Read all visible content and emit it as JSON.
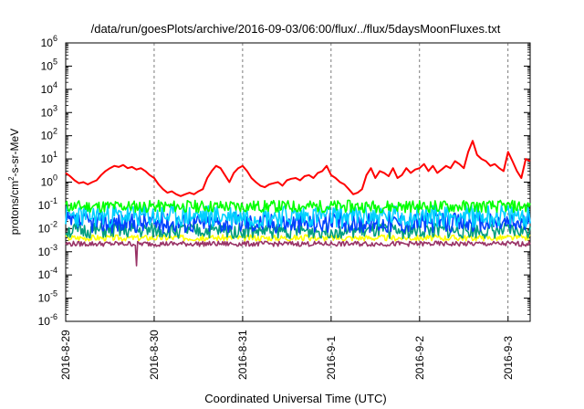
{
  "chart_data": {
    "type": "line",
    "title": "/data/run/goesPlots/archive/2016-09-03/06:00/flux/../flux/5daysMoonFluxes.txt",
    "xlabel": "Coordinated Universal Time (UTC)",
    "ylabel_base": "protons/cm",
    "ylabel_sup": "2",
    "ylabel_rest": "-s-sr-MeV",
    "y_scale": "log",
    "ylim_exp": [
      -6,
      6
    ],
    "y_ticks": [
      {
        "base": "10",
        "exp": "6",
        "value_exp": 6
      },
      {
        "base": "10",
        "exp": "5",
        "value_exp": 5
      },
      {
        "base": "10",
        "exp": "4",
        "value_exp": 4
      },
      {
        "base": "10",
        "exp": "3",
        "value_exp": 3
      },
      {
        "base": "10",
        "exp": "2",
        "value_exp": 2
      },
      {
        "base": "10",
        "exp": "1",
        "value_exp": 1
      },
      {
        "base": "10",
        "exp": "0",
        "value_exp": 0
      },
      {
        "base": "10",
        "exp": "-1",
        "value_exp": -1
      },
      {
        "base": "10",
        "exp": "-2",
        "value_exp": -2
      },
      {
        "base": "10",
        "exp": "-3",
        "value_exp": -3
      },
      {
        "base": "10",
        "exp": "-4",
        "value_exp": -4
      },
      {
        "base": "10",
        "exp": "-5",
        "value_exp": -5
      },
      {
        "base": "10",
        "exp": "-6",
        "value_exp": -6
      }
    ],
    "x_range_days": [
      0,
      5.25
    ],
    "x_ticks": [
      {
        "label": "2016-8-29",
        "day": 0
      },
      {
        "label": "2016-8-30",
        "day": 1
      },
      {
        "label": "2016-8-31",
        "day": 2
      },
      {
        "label": "2016-9-1",
        "day": 3
      },
      {
        "label": "2016-9-2",
        "day": 4
      },
      {
        "label": "2016-9-3",
        "day": 5
      }
    ],
    "grid": "vertical",
    "series": [
      {
        "color": "#ff0000",
        "points": [
          [
            0,
            2.5
          ],
          [
            0.05,
            1.8
          ],
          [
            0.1,
            1.2
          ],
          [
            0.15,
            0.9
          ],
          [
            0.2,
            1.0
          ],
          [
            0.25,
            0.8
          ],
          [
            0.3,
            1.0
          ],
          [
            0.35,
            1.2
          ],
          [
            0.4,
            2.0
          ],
          [
            0.45,
            3.0
          ],
          [
            0.5,
            4.0
          ],
          [
            0.55,
            5.0
          ],
          [
            0.6,
            4.5
          ],
          [
            0.65,
            5.5
          ],
          [
            0.7,
            4.0
          ],
          [
            0.75,
            4.5
          ],
          [
            0.8,
            3.5
          ],
          [
            0.85,
            4.0
          ],
          [
            0.9,
            3.0
          ],
          [
            0.95,
            2.0
          ],
          [
            1.0,
            1.5
          ],
          [
            1.05,
            0.8
          ],
          [
            1.1,
            0.5
          ],
          [
            1.15,
            0.35
          ],
          [
            1.2,
            0.4
          ],
          [
            1.25,
            0.3
          ],
          [
            1.3,
            0.25
          ],
          [
            1.35,
            0.3
          ],
          [
            1.4,
            0.35
          ],
          [
            1.45,
            0.3
          ],
          [
            1.5,
            0.4
          ],
          [
            1.55,
            0.5
          ],
          [
            1.6,
            1.5
          ],
          [
            1.65,
            3.0
          ],
          [
            1.7,
            5.0
          ],
          [
            1.75,
            4.0
          ],
          [
            1.8,
            2.0
          ],
          [
            1.85,
            1.0
          ],
          [
            1.9,
            2.5
          ],
          [
            1.95,
            4.0
          ],
          [
            2.0,
            5.0
          ],
          [
            2.05,
            3.0
          ],
          [
            2.1,
            1.5
          ],
          [
            2.15,
            1.0
          ],
          [
            2.2,
            0.7
          ],
          [
            2.25,
            0.6
          ],
          [
            2.3,
            0.8
          ],
          [
            2.35,
            0.9
          ],
          [
            2.4,
            1.0
          ],
          [
            2.45,
            0.7
          ],
          [
            2.5,
            1.2
          ],
          [
            2.55,
            1.4
          ],
          [
            2.6,
            1.5
          ],
          [
            2.65,
            1.2
          ],
          [
            2.7,
            1.8
          ],
          [
            2.75,
            2.0
          ],
          [
            2.8,
            1.5
          ],
          [
            2.85,
            2.5
          ],
          [
            2.9,
            3.0
          ],
          [
            2.95,
            5.0
          ],
          [
            3.0,
            2.0
          ],
          [
            3.05,
            1.5
          ],
          [
            3.1,
            1.0
          ],
          [
            3.15,
            0.8
          ],
          [
            3.2,
            0.5
          ],
          [
            3.25,
            0.3
          ],
          [
            3.3,
            0.35
          ],
          [
            3.35,
            0.5
          ],
          [
            3.4,
            2.0
          ],
          [
            3.45,
            4.0
          ],
          [
            3.5,
            1.5
          ],
          [
            3.55,
            3.0
          ],
          [
            3.6,
            2.5
          ],
          [
            3.65,
            1.8
          ],
          [
            3.7,
            4.0
          ],
          [
            3.75,
            1.5
          ],
          [
            3.8,
            2.0
          ],
          [
            3.85,
            4.0
          ],
          [
            3.9,
            2.5
          ],
          [
            3.95,
            3.5
          ],
          [
            4.0,
            4.0
          ],
          [
            4.05,
            6.0
          ],
          [
            4.1,
            3.0
          ],
          [
            4.15,
            5.0
          ],
          [
            4.2,
            2.5
          ],
          [
            4.25,
            3.5
          ],
          [
            4.3,
            5.0
          ],
          [
            4.35,
            4.0
          ],
          [
            4.4,
            8.0
          ],
          [
            4.45,
            6.0
          ],
          [
            4.5,
            4.0
          ],
          [
            4.55,
            20
          ],
          [
            4.6,
            60
          ],
          [
            4.65,
            15
          ],
          [
            4.7,
            10
          ],
          [
            4.75,
            8
          ],
          [
            4.8,
            5
          ],
          [
            4.85,
            6
          ],
          [
            4.9,
            4
          ],
          [
            4.95,
            3
          ],
          [
            5.0,
            20
          ],
          [
            5.05,
            8
          ],
          [
            5.1,
            3
          ],
          [
            5.15,
            1.5
          ],
          [
            5.2,
            10
          ],
          [
            5.25,
            8
          ]
        ]
      },
      {
        "color": "#00ff00",
        "level": 0.09,
        "spread": 0.12,
        "seed": 11
      },
      {
        "color": "#00d0ff",
        "level": 0.035,
        "spread": 0.22,
        "seed": 23
      },
      {
        "color": "#0040ff",
        "level": 0.018,
        "spread": 0.2,
        "seed": 37
      },
      {
        "color": "#00a080",
        "level": 0.008,
        "spread": 0.15,
        "seed": 51
      },
      {
        "color": "#ffff00",
        "level": 0.004,
        "spread": 0.06,
        "seed": 67
      },
      {
        "color": "#993366",
        "level": 0.0022,
        "spread": 0.05,
        "seed": 79
      }
    ]
  }
}
